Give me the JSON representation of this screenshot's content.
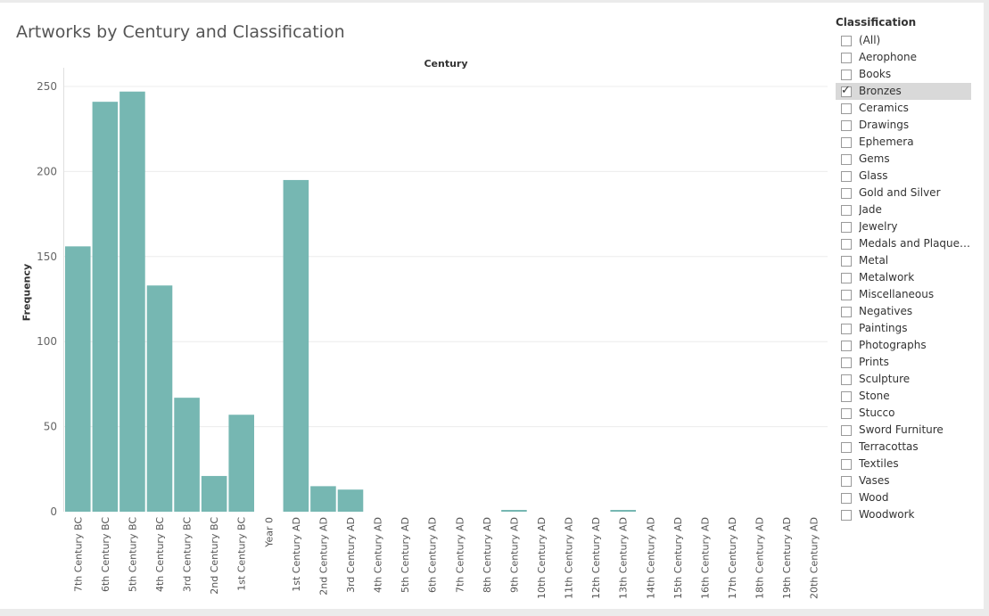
{
  "title": "Artworks by Century and Classification",
  "column_header": "Century",
  "chart_data": {
    "type": "bar",
    "title": "Artworks by Century and Classification",
    "xlabel": "",
    "ylabel": "Frequency",
    "ylim": [
      0,
      260
    ],
    "yticks": [
      0,
      50,
      100,
      150,
      200,
      250
    ],
    "grid": true,
    "bar_color": "#76b7b2",
    "categories": [
      "7th Century BC",
      "6th Century BC",
      "5th Century BC",
      "4th Century BC",
      "3rd Century BC",
      "2nd Century BC",
      "1st Century BC",
      "Year 0",
      "1st Century AD",
      "2nd Century AD",
      "3rd Century AD",
      "4th Century AD",
      "5th Century AD",
      "6th Century AD",
      "7th Century AD",
      "8th Century AD",
      "9th Century AD",
      "10th Century AD",
      "11th Century AD",
      "12th Century AD",
      "13th Century AD",
      "14th Century AD",
      "15th Century AD",
      "16th Century AD",
      "17th Century AD",
      "18th Century AD",
      "19th Century AD",
      "20th Century AD"
    ],
    "values": [
      156,
      241,
      247,
      133,
      67,
      21,
      57,
      0,
      195,
      15,
      13,
      0,
      0,
      0,
      0,
      0,
      1,
      0,
      0,
      0,
      1,
      0,
      0,
      0,
      0,
      0,
      0,
      0
    ]
  },
  "filter": {
    "title": "Classification",
    "selected": "Bronzes",
    "items": [
      "(All)",
      "Aerophone",
      "Books",
      "Bronzes",
      "Ceramics",
      "Drawings",
      "Ephemera",
      "Gems",
      "Glass",
      "Gold and Silver",
      "Jade",
      "Jewelry",
      "Medals and Plaquet...",
      "Metal",
      "Metalwork",
      "Miscellaneous",
      "Negatives",
      "Paintings",
      "Photographs",
      "Prints",
      "Sculpture",
      "Stone",
      "Stucco",
      "Sword Furniture",
      "Terracottas",
      "Textiles",
      "Vases",
      "Wood",
      "Woodwork"
    ],
    "check_glyph": "✓"
  }
}
